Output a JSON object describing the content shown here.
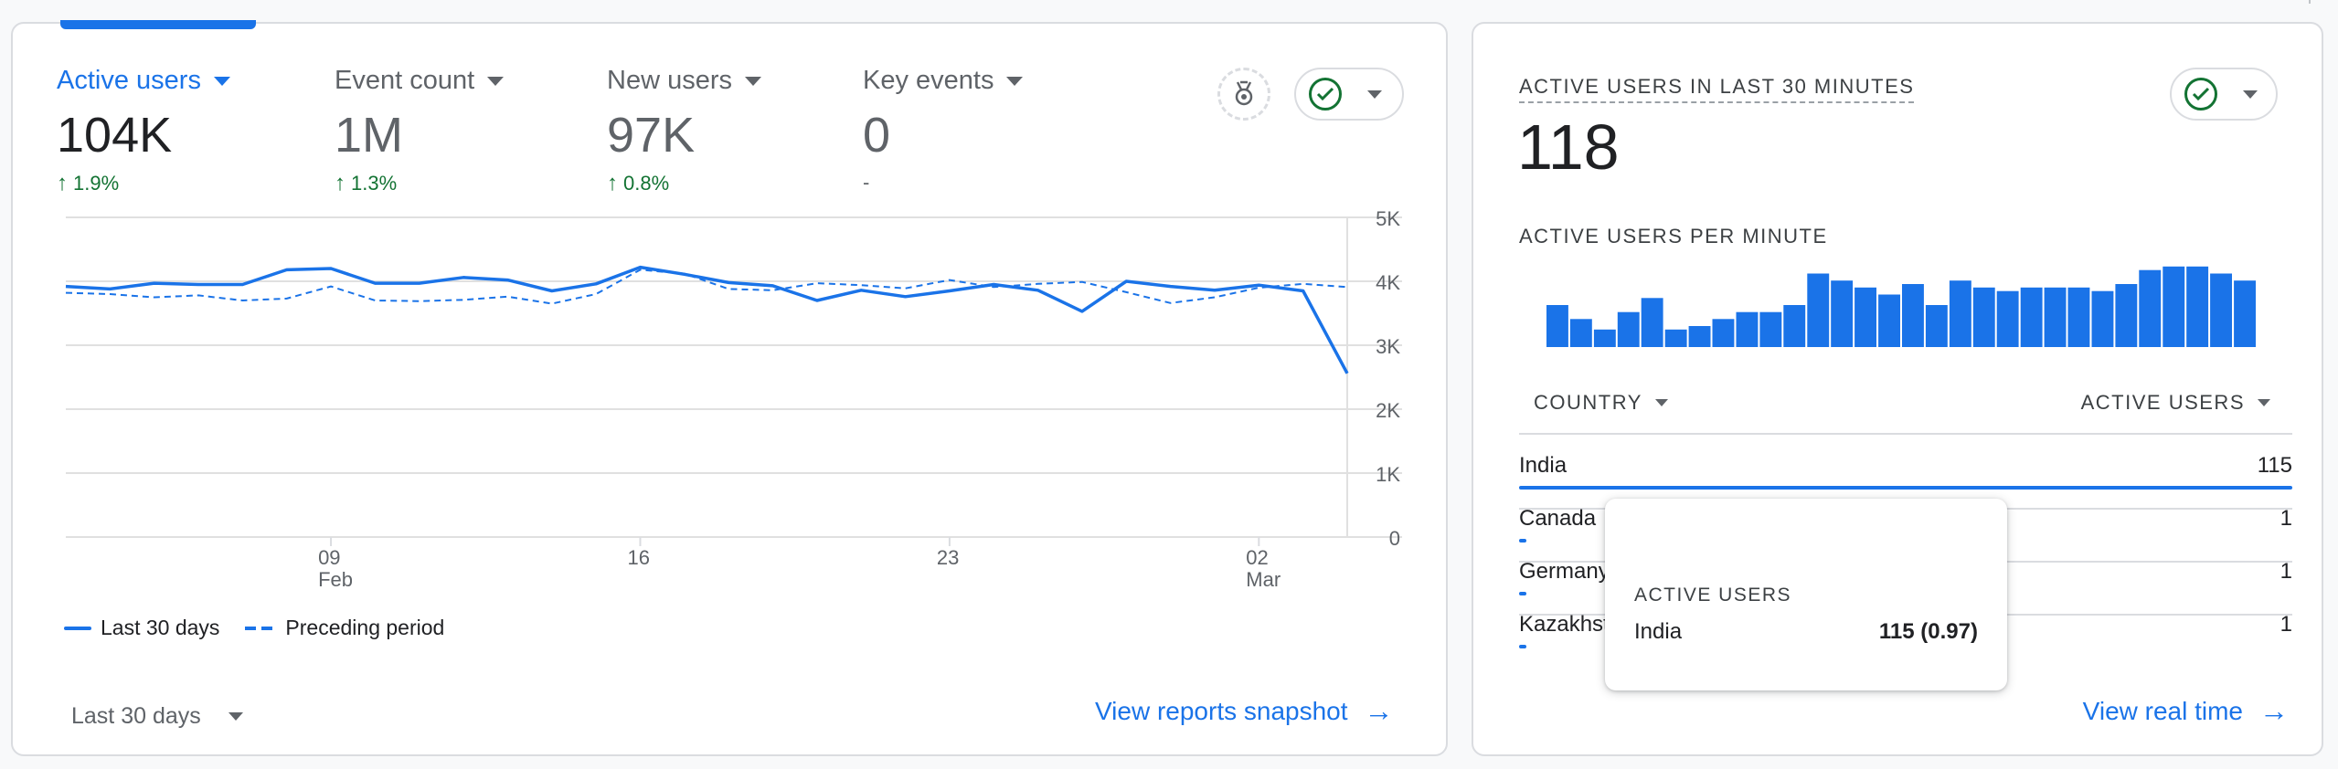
{
  "overview": {
    "metrics": [
      {
        "label": "Active users",
        "value": "104K",
        "change": "1.9%",
        "direction": "up",
        "active": true
      },
      {
        "label": "Event count",
        "value": "1M",
        "change": "1.3%",
        "direction": "up",
        "active": false
      },
      {
        "label": "New users",
        "value": "97K",
        "change": "0.8%",
        "direction": "up",
        "active": false
      },
      {
        "label": "Key events",
        "value": "0",
        "change": "-",
        "direction": "none",
        "active": false
      }
    ],
    "legend": {
      "current": "Last 30 days",
      "previous": "Preceding period"
    },
    "date_range": "Last 30 days",
    "link": "View reports snapshot"
  },
  "chart_data": {
    "type": "line",
    "x_tick_labels": [
      {
        "day": "09",
        "month": "Feb"
      },
      {
        "day": "16",
        "month": ""
      },
      {
        "day": "23",
        "month": ""
      },
      {
        "day": "02",
        "month": "Mar"
      }
    ],
    "y_ticks": [
      "5K",
      "4K",
      "3K",
      "2K",
      "1K",
      "0"
    ],
    "ylim": [
      0,
      5000
    ],
    "grid": true,
    "legend_position": "bottom-left",
    "series": [
      {
        "name": "Last 30 days",
        "style": "solid",
        "values": [
          3920,
          3880,
          3970,
          3950,
          3950,
          4180,
          4200,
          3970,
          3970,
          4060,
          4020,
          3850,
          3960,
          4220,
          4110,
          3980,
          3930,
          3700,
          3860,
          3760,
          3850,
          3950,
          3860,
          3530,
          4000,
          3920,
          3860,
          3940,
          3850,
          2560
        ]
      },
      {
        "name": "Preceding period",
        "style": "dashed",
        "values": [
          3820,
          3800,
          3750,
          3780,
          3700,
          3730,
          3920,
          3700,
          3690,
          3710,
          3760,
          3650,
          3800,
          4180,
          4120,
          3880,
          3860,
          3970,
          3940,
          3890,
          4020,
          3910,
          3960,
          3990,
          3830,
          3660,
          3750,
          3900,
          3960,
          3910
        ]
      }
    ],
    "colors": {
      "line": "#1a73e8",
      "grid": "#e0e0e0"
    }
  },
  "realtime": {
    "title": "ACTIVE USERS IN LAST 30 MINUTES",
    "value": "118",
    "per_minute_label": "ACTIVE USERS PER MINUTE",
    "per_minute_values": [
      6,
      4,
      2.5,
      5,
      7,
      2.5,
      3,
      4,
      5,
      5,
      6,
      10.5,
      9.5,
      8.5,
      7.5,
      9,
      6,
      9.5,
      8.5,
      8,
      8.5,
      8.5,
      8.5,
      8,
      9,
      11,
      11.5,
      11.5,
      10.5,
      9.5
    ],
    "table": {
      "col_country": "COUNTRY",
      "col_users": "ACTIVE USERS",
      "rows": [
        {
          "country": "India",
          "count": "115",
          "share": 1.0
        },
        {
          "country": "Canada",
          "count": "1",
          "share": 0.009
        },
        {
          "country": "Germany",
          "count": "1",
          "share": 0.009
        },
        {
          "country": "Kazakhstan",
          "count": "1",
          "share": 0.009
        }
      ]
    },
    "tooltip": {
      "heading": "ACTIVE USERS",
      "name": "India",
      "value": "115 (0.97)"
    },
    "link": "View real time"
  }
}
